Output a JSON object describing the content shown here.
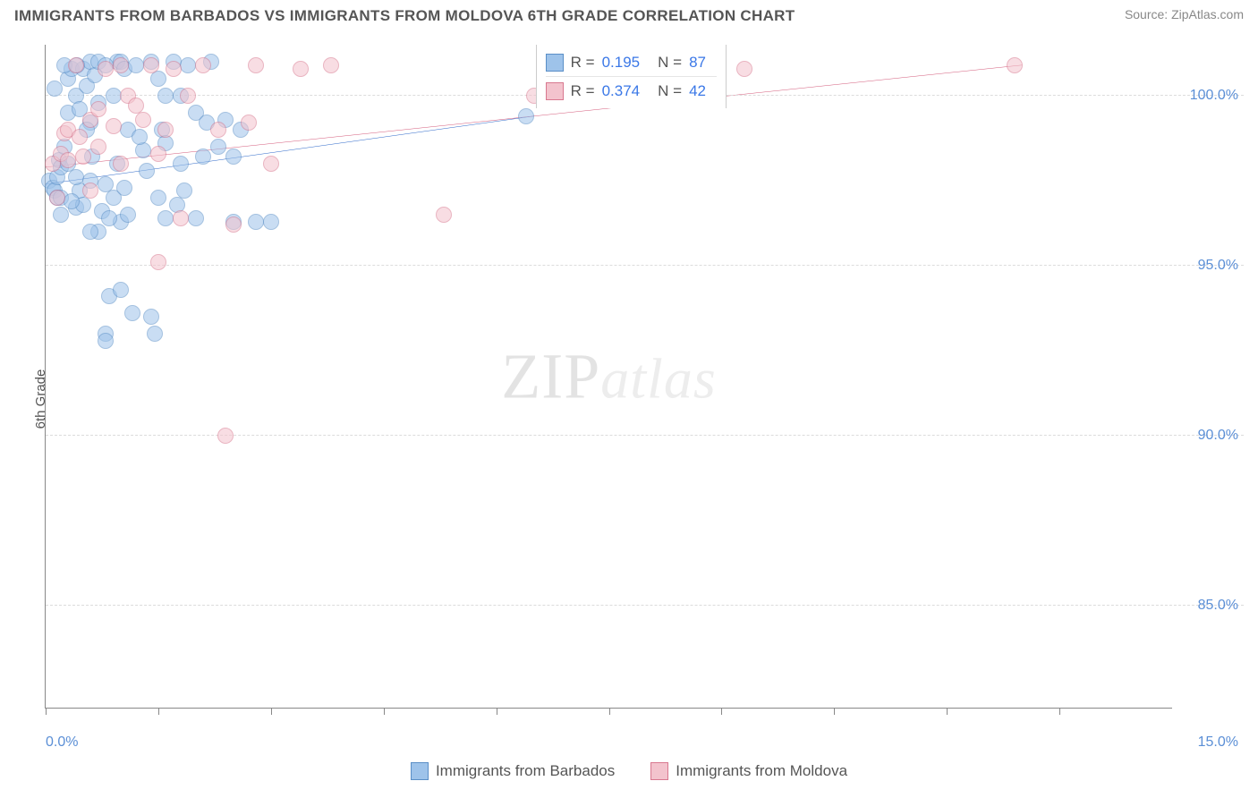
{
  "header": {
    "title": "IMMIGRANTS FROM BARBADOS VS IMMIGRANTS FROM MOLDOVA 6TH GRADE CORRELATION CHART",
    "source": "Source: ZipAtlas.com"
  },
  "chart": {
    "type": "scatter",
    "y_axis_label": "6th Grade",
    "watermark_text_1": "ZIP",
    "watermark_text_2": "atlas",
    "background_color": "#ffffff",
    "grid_color": "#dcdcdc",
    "axis_color": "#888888",
    "tick_label_color": "#5b8fd6",
    "xlim": [
      0.0,
      15.0
    ],
    "ylim": [
      82.0,
      101.5
    ],
    "x_ticks": [
      0.0,
      1.5,
      3.0,
      4.5,
      6.0,
      7.5,
      9.0,
      10.5,
      12.0,
      13.5
    ],
    "x_tick_labels": {
      "min": "0.0%",
      "max": "15.0%"
    },
    "y_gridlines": [
      85.0,
      90.0,
      95.0,
      100.0
    ],
    "y_tick_labels": [
      "85.0%",
      "90.0%",
      "95.0%",
      "100.0%"
    ],
    "dot_radius": 9,
    "dot_stroke_width": 1,
    "series": [
      {
        "name": "Immigrants from Barbados",
        "fill_color": "#9ec3ea",
        "stroke_color": "#5a8fc7",
        "fill_opacity": 0.55,
        "r": "0.195",
        "n": "87",
        "trend": {
          "x1": 0.0,
          "y1": 97.4,
          "x2": 6.5,
          "y2": 99.4,
          "color": "#2a66c8",
          "width": 2
        },
        "points": [
          [
            0.05,
            97.5
          ],
          [
            0.1,
            97.3
          ],
          [
            0.12,
            97.2
          ],
          [
            0.15,
            97.0
          ],
          [
            0.15,
            97.6
          ],
          [
            0.18,
            98.1
          ],
          [
            0.2,
            97.9
          ],
          [
            0.2,
            97.0
          ],
          [
            0.25,
            98.5
          ],
          [
            0.3,
            99.5
          ],
          [
            0.3,
            100.5
          ],
          [
            0.35,
            100.8
          ],
          [
            0.4,
            100.0
          ],
          [
            0.4,
            96.7
          ],
          [
            0.45,
            97.2
          ],
          [
            0.5,
            100.8
          ],
          [
            0.5,
            96.8
          ],
          [
            0.55,
            100.3
          ],
          [
            0.6,
            99.2
          ],
          [
            0.6,
            101.0
          ],
          [
            0.62,
            98.2
          ],
          [
            0.65,
            100.6
          ],
          [
            0.7,
            99.8
          ],
          [
            0.7,
            101.0
          ],
          [
            0.75,
            96.6
          ],
          [
            0.8,
            93.0
          ],
          [
            0.8,
            92.8
          ],
          [
            0.85,
            94.1
          ],
          [
            0.9,
            100.0
          ],
          [
            0.9,
            97.0
          ],
          [
            0.95,
            101.0
          ],
          [
            1.0,
            101.0
          ],
          [
            1.0,
            96.3
          ],
          [
            1.05,
            100.8
          ],
          [
            1.1,
            99.0
          ],
          [
            1.1,
            96.5
          ],
          [
            1.15,
            93.6
          ],
          [
            1.2,
            100.9
          ],
          [
            1.3,
            98.4
          ],
          [
            1.4,
            101.0
          ],
          [
            1.4,
            93.5
          ],
          [
            1.45,
            93.0
          ],
          [
            1.5,
            100.5
          ],
          [
            1.5,
            97.0
          ],
          [
            1.55,
            99.0
          ],
          [
            1.6,
            96.4
          ],
          [
            1.6,
            100.0
          ],
          [
            1.7,
            101.0
          ],
          [
            1.8,
            100.0
          ],
          [
            1.8,
            98.0
          ],
          [
            1.85,
            97.2
          ],
          [
            1.9,
            100.9
          ],
          [
            2.0,
            96.4
          ],
          [
            2.0,
            99.5
          ],
          [
            2.1,
            98.2
          ],
          [
            2.15,
            99.2
          ],
          [
            2.2,
            101.0
          ],
          [
            2.3,
            98.5
          ],
          [
            2.4,
            99.3
          ],
          [
            2.5,
            98.2
          ],
          [
            2.5,
            96.3
          ],
          [
            2.6,
            99.0
          ],
          [
            2.8,
            96.3
          ],
          [
            3.0,
            96.3
          ],
          [
            0.35,
            96.9
          ],
          [
            0.4,
            97.6
          ],
          [
            0.6,
            97.5
          ],
          [
            0.8,
            97.4
          ],
          [
            0.55,
            99.0
          ],
          [
            0.45,
            99.6
          ],
          [
            0.95,
            98.0
          ],
          [
            1.05,
            97.3
          ],
          [
            1.25,
            98.8
          ],
          [
            1.35,
            97.8
          ],
          [
            1.6,
            98.6
          ],
          [
            1.75,
            96.8
          ],
          [
            0.2,
            96.5
          ],
          [
            0.3,
            98.0
          ],
          [
            0.7,
            96.0
          ],
          [
            0.8,
            100.9
          ],
          [
            0.12,
            100.2
          ],
          [
            0.25,
            100.9
          ],
          [
            0.42,
            100.9
          ],
          [
            6.4,
            99.4
          ],
          [
            1.0,
            94.3
          ],
          [
            0.6,
            96.0
          ],
          [
            0.85,
            96.4
          ]
        ]
      },
      {
        "name": "Immigrants from Moldova",
        "fill_color": "#f3c3cd",
        "stroke_color": "#d8788f",
        "fill_opacity": 0.55,
        "r": "0.374",
        "n": "42",
        "trend": {
          "x1": 0.0,
          "y1": 97.9,
          "x2": 13.0,
          "y2": 100.9,
          "color": "#d45a7a",
          "width": 2
        },
        "points": [
          [
            0.1,
            98.0
          ],
          [
            0.15,
            97.0
          ],
          [
            0.2,
            98.3
          ],
          [
            0.25,
            98.9
          ],
          [
            0.3,
            98.1
          ],
          [
            0.3,
            99.0
          ],
          [
            0.4,
            100.9
          ],
          [
            0.45,
            98.8
          ],
          [
            0.5,
            98.2
          ],
          [
            0.6,
            99.3
          ],
          [
            0.6,
            97.2
          ],
          [
            0.7,
            98.5
          ],
          [
            0.7,
            99.6
          ],
          [
            0.8,
            100.8
          ],
          [
            0.9,
            99.1
          ],
          [
            1.0,
            100.9
          ],
          [
            1.0,
            98.0
          ],
          [
            1.1,
            100.0
          ],
          [
            1.2,
            99.7
          ],
          [
            1.3,
            99.3
          ],
          [
            1.4,
            100.9
          ],
          [
            1.5,
            98.3
          ],
          [
            1.5,
            95.1
          ],
          [
            1.6,
            99.0
          ],
          [
            1.7,
            100.8
          ],
          [
            1.9,
            100.0
          ],
          [
            2.1,
            100.9
          ],
          [
            2.3,
            99.0
          ],
          [
            2.4,
            90.0
          ],
          [
            2.5,
            96.2
          ],
          [
            2.7,
            99.2
          ],
          [
            2.8,
            100.9
          ],
          [
            3.0,
            98.0
          ],
          [
            3.4,
            100.8
          ],
          [
            3.8,
            100.9
          ],
          [
            5.3,
            96.5
          ],
          [
            6.5,
            100.0
          ],
          [
            8.5,
            100.8
          ],
          [
            8.8,
            100.9
          ],
          [
            9.3,
            100.8
          ],
          [
            12.9,
            100.9
          ],
          [
            1.8,
            96.4
          ]
        ]
      }
    ],
    "stats_box": {
      "left_pct": 43.5,
      "top_pct": 0
    },
    "bottom_legend": [
      {
        "label": "Immigrants from Barbados",
        "fill": "#9ec3ea",
        "stroke": "#5a8fc7"
      },
      {
        "label": "Immigrants from Moldova",
        "fill": "#f3c3cd",
        "stroke": "#d8788f"
      }
    ]
  }
}
